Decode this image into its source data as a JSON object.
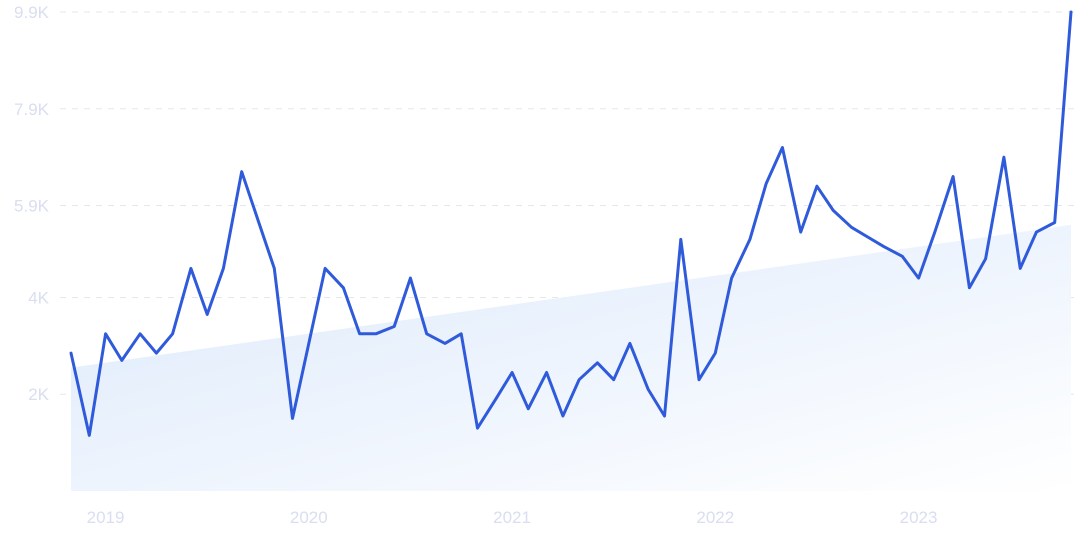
{
  "chart_data": {
    "type": "line",
    "title": "",
    "xlabel": "",
    "ylabel": "",
    "ylim": [
      0,
      9900
    ],
    "y_ticks": [
      "9.9K",
      "7.9K",
      "5.9K",
      "4K",
      "2K"
    ],
    "y_tick_values": [
      9900,
      7900,
      5900,
      4000,
      2000
    ],
    "x_ticks": [
      "2019",
      "2020",
      "2021",
      "2022",
      "2023"
    ],
    "x_tick_values": [
      2019.0,
      2020.0,
      2021.0,
      2022.0,
      2023.0
    ],
    "grid": true,
    "colors": {
      "line": "#2f5bdb",
      "trend_fill": "#dce9fb",
      "tick": "#d9def0",
      "grid": "#e4e7ef"
    },
    "trend": {
      "x": [
        2018.83,
        2023.75
      ],
      "y": [
        2550,
        5500
      ]
    },
    "series": [
      {
        "name": "",
        "x": [
          2018.83,
          2018.92,
          2019.0,
          2019.08,
          2019.17,
          2019.25,
          2019.33,
          2019.42,
          2019.5,
          2019.58,
          2019.67,
          2019.75,
          2019.83,
          2019.92,
          2020.0,
          2020.08,
          2020.17,
          2020.25,
          2020.33,
          2020.42,
          2020.5,
          2020.58,
          2020.67,
          2020.75,
          2020.83,
          2020.92,
          2021.0,
          2021.08,
          2021.17,
          2021.25,
          2021.33,
          2021.42,
          2021.5,
          2021.58,
          2021.67,
          2021.75,
          2021.83,
          2021.92,
          2022.0,
          2022.08,
          2022.17,
          2022.25,
          2022.33,
          2022.42,
          2022.5,
          2022.58,
          2022.67,
          2022.75,
          2022.83,
          2022.92,
          2023.0,
          2023.08,
          2023.17,
          2023.25,
          2023.33,
          2023.42,
          2023.5,
          2023.58,
          2023.67,
          2023.75
        ],
        "y": [
          2850,
          1150,
          3250,
          2700,
          3250,
          2850,
          3250,
          4600,
          3650,
          4600,
          6600,
          5600,
          4600,
          1500,
          3050,
          4600,
          4200,
          3250,
          3250,
          3400,
          4400,
          3250,
          3050,
          3250,
          1300,
          1900,
          2450,
          1700,
          2450,
          1550,
          2300,
          2650,
          2300,
          3050,
          2100,
          1550,
          5200,
          2300,
          2850,
          4400,
          5200,
          6350,
          7100,
          5350,
          6300,
          5800,
          5450,
          5250,
          5050,
          4850,
          4400,
          5350,
          6500,
          4200,
          4800,
          6900,
          4600,
          5350,
          5550,
          9900
        ]
      }
    ]
  }
}
